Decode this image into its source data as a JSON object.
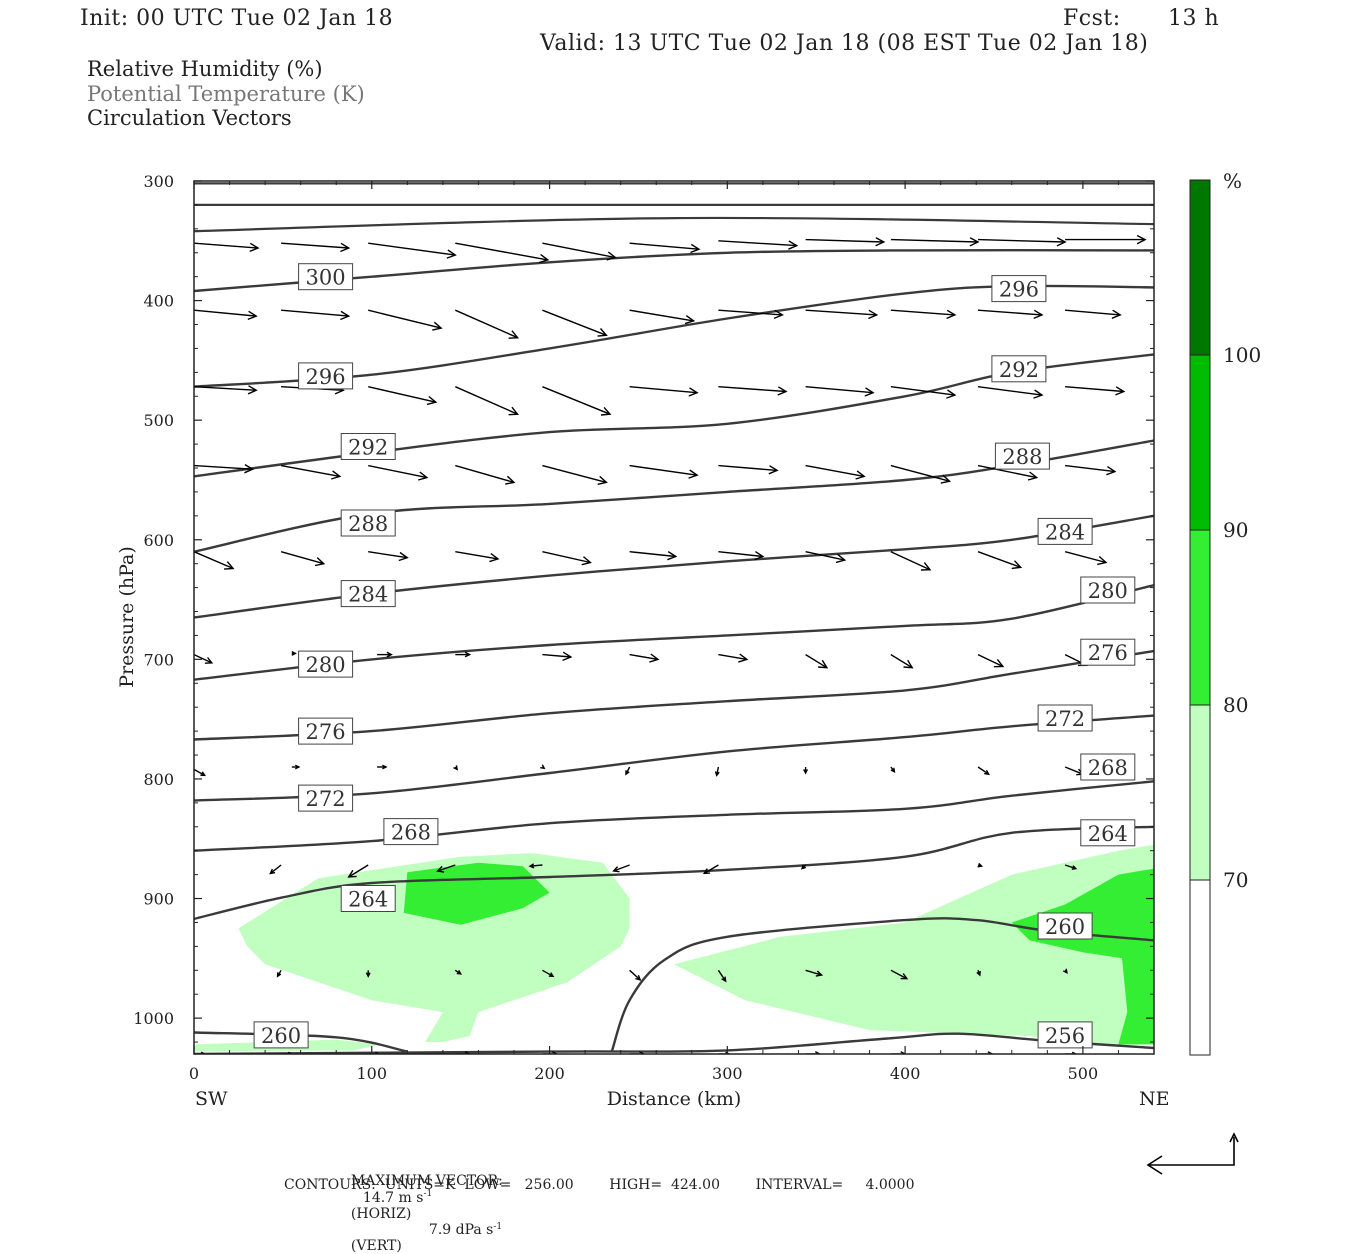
{
  "header": {
    "init": "Init: 00 UTC Tue 02 Jan 18",
    "fcst_label": "Fcst:",
    "fcst_value": "13 h",
    "valid": "Valid: 13 UTC Tue 02 Jan 18 (08 EST Tue 02 Jan 18)"
  },
  "fields": {
    "rh": "Relative Humidity (%)",
    "theta": "Potential Temperature (K)",
    "vectors": "Circulation Vectors"
  },
  "colors": {
    "rh_70_80": "#c0ffc0",
    "rh_80_90": "#33ee33",
    "rh_90_100": "#00bb00",
    "rh_100_plus": "#007700",
    "contour": "#3a3a3a",
    "vector": "#000000"
  },
  "colorbar": {
    "unit": "%",
    "labels": [
      "70",
      "80",
      "90",
      "100"
    ]
  },
  "footer": {
    "max_vector_label": "MAXIMUM VECTOR:",
    "horiz": "14.7 m s",
    "horiz_sup": "-1",
    "horiz_tag": "(HORIZ)",
    "vert": "7.9 dPa s",
    "vert_sup": "-1",
    "vert_tag": "(VERT)",
    "contours": "CONTOURS:  UNITS=K  LOW=   256.00        HIGH=  424.00        INTERVAL=     4.0000"
  },
  "chart_data": {
    "type": "contour",
    "xlabel": "Distance (km)",
    "ylabel": "Pressure (hPa)",
    "x_left_end": "SW",
    "x_right_end": "NE",
    "xlim": [
      0,
      540
    ],
    "ylim": [
      1030,
      300
    ],
    "xticks": [
      0,
      100,
      200,
      300,
      400,
      500
    ],
    "yticks": [
      300,
      400,
      500,
      600,
      700,
      800,
      900,
      1000
    ],
    "theta_contours": [
      {
        "level": 300,
        "points": [
          [
            0,
            392
          ],
          [
            100,
            380
          ],
          [
            200,
            368
          ],
          [
            300,
            360
          ],
          [
            400,
            358
          ],
          [
            540,
            358
          ]
        ]
      },
      {
        "level": 296,
        "points": [
          [
            0,
            472
          ],
          [
            100,
            462
          ],
          [
            200,
            440
          ],
          [
            300,
            415
          ],
          [
            400,
            394
          ],
          [
            460,
            388
          ],
          [
            540,
            389
          ]
        ]
      },
      {
        "level": 292,
        "points": [
          [
            0,
            547
          ],
          [
            100,
            527
          ],
          [
            200,
            510
          ],
          [
            300,
            503
          ],
          [
            400,
            480
          ],
          [
            460,
            460
          ],
          [
            540,
            445
          ]
        ]
      },
      {
        "level": 288,
        "points": [
          [
            0,
            610
          ],
          [
            100,
            578
          ],
          [
            200,
            570
          ],
          [
            300,
            560
          ],
          [
            400,
            550
          ],
          [
            460,
            538
          ],
          [
            540,
            517
          ]
        ]
      },
      {
        "level": 284,
        "points": [
          [
            0,
            665
          ],
          [
            100,
            645
          ],
          [
            200,
            630
          ],
          [
            300,
            618
          ],
          [
            400,
            608
          ],
          [
            460,
            600
          ],
          [
            540,
            580
          ]
        ]
      },
      {
        "level": 280,
        "points": [
          [
            0,
            717
          ],
          [
            100,
            700
          ],
          [
            200,
            688
          ],
          [
            300,
            680
          ],
          [
            400,
            672
          ],
          [
            460,
            666
          ],
          [
            540,
            638
          ]
        ]
      },
      {
        "level": 276,
        "points": [
          [
            0,
            767
          ],
          [
            100,
            760
          ],
          [
            200,
            745
          ],
          [
            300,
            735
          ],
          [
            400,
            726
          ],
          [
            460,
            712
          ],
          [
            540,
            693
          ]
        ]
      },
      {
        "level": 272,
        "points": [
          [
            0,
            818
          ],
          [
            100,
            812
          ],
          [
            200,
            795
          ],
          [
            300,
            777
          ],
          [
            400,
            765
          ],
          [
            460,
            756
          ],
          [
            540,
            747
          ]
        ]
      },
      {
        "level": 268,
        "points": [
          [
            0,
            860
          ],
          [
            100,
            852
          ],
          [
            200,
            837
          ],
          [
            300,
            830
          ],
          [
            400,
            825
          ],
          [
            460,
            814
          ],
          [
            540,
            802
          ]
        ]
      },
      {
        "level": 264,
        "points": [
          [
            0,
            917
          ],
          [
            50,
            899
          ],
          [
            100,
            887
          ],
          [
            200,
            882
          ],
          [
            300,
            876
          ],
          [
            400,
            865
          ],
          [
            460,
            845
          ],
          [
            540,
            840
          ]
        ]
      },
      {
        "level": 260,
        "points": [
          [
            0,
            1012
          ],
          [
            80,
            1016
          ],
          [
            120,
            1028
          ]
        ]
      },
      {
        "level": 260,
        "points": [
          [
            235,
            1028
          ],
          [
            245,
            985
          ],
          [
            265,
            951
          ],
          [
            300,
            932
          ],
          [
            400,
            918
          ],
          [
            440,
            918
          ],
          [
            480,
            927
          ],
          [
            540,
            935
          ]
        ]
      },
      {
        "level": 256,
        "points": [
          [
            0,
            1030
          ],
          [
            200,
            1028
          ],
          [
            300,
            1027
          ],
          [
            390,
            1017
          ],
          [
            430,
            1013
          ],
          [
            480,
            1019
          ],
          [
            540,
            1025
          ]
        ]
      }
    ],
    "contour_labels": [
      {
        "text": "300",
        "x": 74,
        "p": 380
      },
      {
        "text": "296",
        "x": 464,
        "p": 390
      },
      {
        "text": "296",
        "x": 74,
        "p": 463
      },
      {
        "text": "292",
        "x": 464,
        "p": 457
      },
      {
        "text": "292",
        "x": 98,
        "p": 522
      },
      {
        "text": "288",
        "x": 466,
        "p": 530
      },
      {
        "text": "288",
        "x": 98,
        "p": 586
      },
      {
        "text": "284",
        "x": 490,
        "p": 593
      },
      {
        "text": "284",
        "x": 98,
        "p": 645
      },
      {
        "text": "280",
        "x": 514,
        "p": 642
      },
      {
        "text": "280",
        "x": 74,
        "p": 704
      },
      {
        "text": "276",
        "x": 514,
        "p": 694
      },
      {
        "text": "276",
        "x": 74,
        "p": 760
      },
      {
        "text": "272",
        "x": 490,
        "p": 749
      },
      {
        "text": "272",
        "x": 74,
        "p": 816
      },
      {
        "text": "268",
        "x": 514,
        "p": 790
      },
      {
        "text": "268",
        "x": 122,
        "p": 844
      },
      {
        "text": "264",
        "x": 514,
        "p": 845
      },
      {
        "text": "264",
        "x": 98,
        "p": 900
      },
      {
        "text": "260",
        "x": 490,
        "p": 923
      },
      {
        "text": "260",
        "x": 49,
        "p": 1014
      },
      {
        "text": "256",
        "x": 490,
        "p": 1014
      }
    ],
    "rh_levels": [
      70,
      80,
      90,
      100
    ],
    "rh_regions": [
      {
        "level": 70,
        "points": [
          [
            25,
            925
          ],
          [
            70,
            883
          ],
          [
            150,
            865
          ],
          [
            190,
            862
          ],
          [
            230,
            870
          ],
          [
            245,
            900
          ],
          [
            245,
            925
          ],
          [
            240,
            940
          ],
          [
            210,
            970
          ],
          [
            160,
            995
          ],
          [
            155,
            1015
          ],
          [
            140,
            1020
          ],
          [
            130,
            1020
          ],
          [
            140,
            995
          ],
          [
            100,
            985
          ],
          [
            40,
            955
          ],
          [
            30,
            940
          ]
        ]
      },
      {
        "level": 70,
        "points": [
          [
            0,
            1022
          ],
          [
            40,
            1020
          ],
          [
            80,
            1018
          ],
          [
            105,
            1022
          ],
          [
            90,
            1027
          ],
          [
            0,
            1028
          ]
        ]
      },
      {
        "level": 70,
        "points": [
          [
            270,
            955
          ],
          [
            330,
            932
          ],
          [
            400,
            920
          ],
          [
            460,
            880
          ],
          [
            520,
            860
          ],
          [
            540,
            855
          ],
          [
            540,
            1022
          ],
          [
            505,
            1022
          ],
          [
            470,
            1015
          ],
          [
            380,
            1010
          ],
          [
            310,
            985
          ]
        ]
      },
      {
        "level": 80,
        "points": [
          [
            120,
            878
          ],
          [
            160,
            870
          ],
          [
            185,
            873
          ],
          [
            200,
            895
          ],
          [
            185,
            908
          ],
          [
            150,
            922
          ],
          [
            118,
            912
          ]
        ]
      },
      {
        "level": 80,
        "points": [
          [
            460,
            920
          ],
          [
            490,
            905
          ],
          [
            520,
            880
          ],
          [
            540,
            875
          ],
          [
            540,
            1022
          ],
          [
            520,
            1022
          ],
          [
            525,
            995
          ],
          [
            522,
            950
          ],
          [
            500,
            945
          ],
          [
            470,
            935
          ]
        ]
      }
    ],
    "vectors_note": "arrows are circulation vectors (u, omega); listed as x km, p hPa, dx km, dp hPa",
    "vectors": [
      [
        0,
        352,
        36,
        4
      ],
      [
        49,
        352,
        38,
        4
      ],
      [
        98,
        352,
        49,
        10
      ],
      [
        147,
        352,
        52,
        14
      ],
      [
        196,
        352,
        41,
        12
      ],
      [
        245,
        352,
        39,
        5
      ],
      [
        295,
        350,
        44,
        4
      ],
      [
        344,
        349,
        44,
        2
      ],
      [
        392,
        349,
        49,
        2
      ],
      [
        441,
        349,
        49,
        2
      ],
      [
        490,
        349,
        45,
        0
      ],
      [
        0,
        408,
        35,
        5
      ],
      [
        49,
        408,
        38,
        5
      ],
      [
        98,
        408,
        41,
        15
      ],
      [
        147,
        408,
        35,
        23
      ],
      [
        196,
        408,
        36,
        21
      ],
      [
        245,
        408,
        36,
        9
      ],
      [
        295,
        408,
        36,
        4
      ],
      [
        344,
        408,
        40,
        4
      ],
      [
        392,
        408,
        36,
        4
      ],
      [
        441,
        408,
        36,
        4
      ],
      [
        490,
        408,
        31,
        4
      ],
      [
        0,
        472,
        35,
        3
      ],
      [
        49,
        472,
        35,
        3
      ],
      [
        98,
        472,
        38,
        13
      ],
      [
        147,
        472,
        35,
        23
      ],
      [
        196,
        472,
        38,
        23
      ],
      [
        245,
        472,
        38,
        5
      ],
      [
        295,
        472,
        38,
        4
      ],
      [
        344,
        472,
        38,
        5
      ],
      [
        392,
        472,
        36,
        7
      ],
      [
        441,
        472,
        36,
        7
      ],
      [
        490,
        472,
        33,
        4
      ],
      [
        0,
        538,
        33,
        3
      ],
      [
        49,
        538,
        33,
        9
      ],
      [
        98,
        538,
        33,
        10
      ],
      [
        147,
        538,
        33,
        14
      ],
      [
        196,
        538,
        36,
        14
      ],
      [
        245,
        538,
        38,
        8
      ],
      [
        295,
        538,
        33,
        4
      ],
      [
        344,
        538,
        33,
        9
      ],
      [
        392,
        538,
        33,
        13
      ],
      [
        441,
        538,
        33,
        10
      ],
      [
        490,
        538,
        28,
        5
      ],
      [
        0,
        610,
        22,
        14
      ],
      [
        49,
        610,
        24,
        10
      ],
      [
        98,
        610,
        22,
        5
      ],
      [
        147,
        610,
        24,
        6
      ],
      [
        196,
        610,
        27,
        9
      ],
      [
        245,
        610,
        26,
        4
      ],
      [
        295,
        610,
        25,
        4
      ],
      [
        344,
        610,
        22,
        7
      ],
      [
        392,
        610,
        22,
        15
      ],
      [
        441,
        610,
        24,
        13
      ],
      [
        490,
        610,
        23,
        9
      ],
      [
        0,
        696,
        10,
        7
      ],
      [
        55,
        695,
        2,
        0
      ],
      [
        103,
        696,
        8,
        0
      ],
      [
        147,
        696,
        8,
        0
      ],
      [
        196,
        696,
        16,
        2
      ],
      [
        245,
        696,
        16,
        4
      ],
      [
        295,
        696,
        16,
        4
      ],
      [
        344,
        696,
        12,
        11
      ],
      [
        392,
        696,
        12,
        11
      ],
      [
        441,
        696,
        14,
        10
      ],
      [
        490,
        696,
        12,
        9
      ],
      [
        0,
        792,
        6,
        5
      ],
      [
        55,
        790,
        4,
        0
      ],
      [
        103,
        790,
        5,
        0
      ],
      [
        147,
        790,
        1,
        2
      ],
      [
        196,
        790,
        1,
        1
      ],
      [
        245,
        790,
        -2,
        6
      ],
      [
        295,
        790,
        -1,
        7
      ],
      [
        344,
        790,
        0,
        5
      ],
      [
        392,
        790,
        2,
        4
      ],
      [
        441,
        790,
        6,
        6
      ],
      [
        490,
        790,
        10,
        6
      ],
      [
        0,
        872,
        -2,
        2
      ],
      [
        49,
        872,
        -6,
        7
      ],
      [
        98,
        872,
        -11,
        10
      ],
      [
        147,
        872,
        -10,
        5
      ],
      [
        196,
        872,
        -7,
        1
      ],
      [
        245,
        872,
        -9,
        5
      ],
      [
        295,
        872,
        -8,
        7
      ],
      [
        344,
        872,
        -2,
        3
      ],
      [
        392,
        872,
        0,
        1
      ],
      [
        441,
        872,
        2,
        1
      ],
      [
        490,
        872,
        6,
        3
      ],
      [
        0,
        960,
        0,
        0
      ],
      [
        49,
        960,
        -2,
        5
      ],
      [
        98,
        960,
        0,
        5
      ],
      [
        147,
        960,
        3,
        3
      ],
      [
        196,
        960,
        6,
        5
      ],
      [
        245,
        960,
        6,
        8
      ],
      [
        295,
        960,
        4,
        9
      ],
      [
        344,
        960,
        9,
        4
      ],
      [
        392,
        960,
        9,
        7
      ],
      [
        441,
        960,
        1,
        4
      ],
      [
        490,
        960,
        1,
        2
      ],
      [
        0,
        1030,
        6,
        0
      ],
      [
        49,
        1030,
        6,
        0
      ],
      [
        98,
        1030,
        6,
        0
      ],
      [
        147,
        1030,
        8,
        0
      ],
      [
        196,
        1030,
        8,
        0
      ],
      [
        245,
        1030,
        8,
        0
      ],
      [
        295,
        1030,
        6,
        0
      ],
      [
        344,
        1030,
        8,
        0
      ],
      [
        392,
        1030,
        8,
        0
      ],
      [
        441,
        1030,
        8,
        0
      ],
      [
        490,
        1030,
        6,
        0
      ]
    ]
  }
}
